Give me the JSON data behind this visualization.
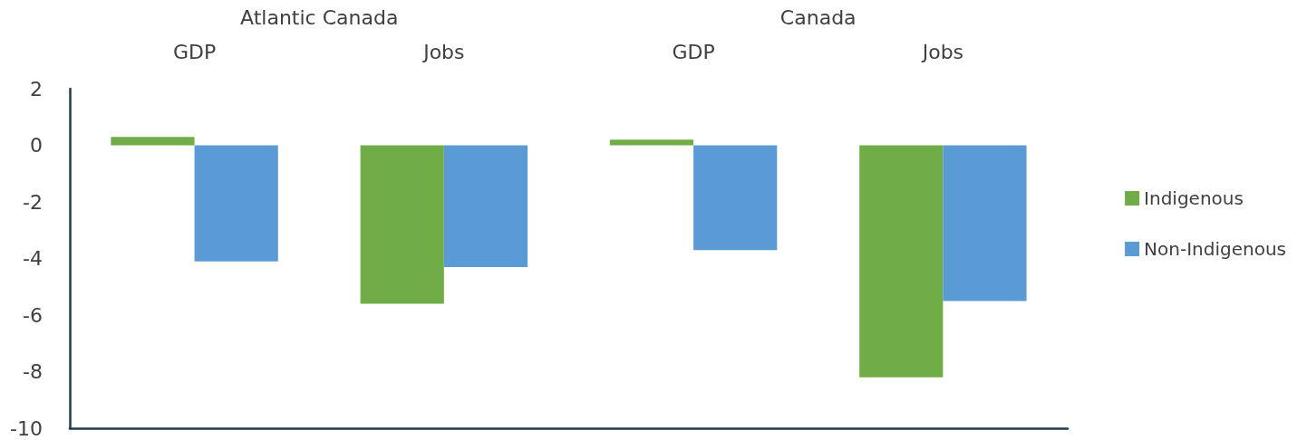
{
  "chart_data": {
    "type": "bar",
    "categories": [
      "GDP",
      "Jobs",
      "GDP",
      "Jobs"
    ],
    "annotations": [
      "Atlantic Canada",
      "Canada"
    ],
    "series": [
      {
        "name": "Indigenous",
        "color": "#70ad47",
        "values": [
          0.3,
          -5.6,
          0.2,
          -8.2
        ]
      },
      {
        "name": "Non-Indigenous",
        "color": "#5b9bd5",
        "values": [
          -4.1,
          -4.3,
          -3.7,
          -5.5
        ]
      }
    ],
    "ylim": [
      -10,
      2
    ],
    "yticks": [
      -10,
      -8,
      -6,
      -4,
      -2,
      0,
      2
    ],
    "grid": false,
    "legend": "right"
  }
}
